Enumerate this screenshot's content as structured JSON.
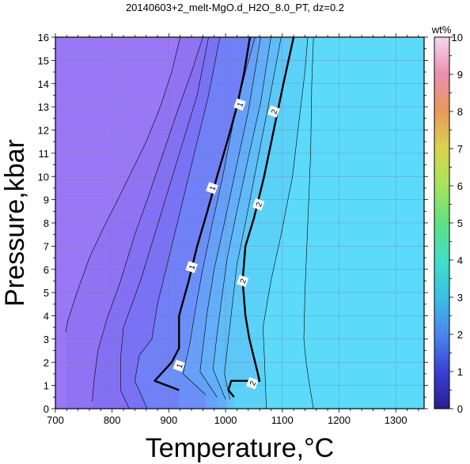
{
  "chart_data": {
    "type": "heatmap",
    "title": "20140603+2_melt-MgO.d_H2O_8.0_PT, dz=0.2",
    "xlabel": "Temperature,°C",
    "ylabel": "Pressure,kbar",
    "xlim": [
      700,
      1350
    ],
    "ylim": [
      0,
      16
    ],
    "x_ticks": [
      700,
      800,
      900,
      1000,
      1100,
      1200,
      1300
    ],
    "y_ticks": [
      0,
      1,
      2,
      3,
      4,
      5,
      6,
      7,
      8,
      9,
      10,
      11,
      12,
      13,
      14,
      15,
      16
    ],
    "grid": true,
    "colorbar": {
      "label": "wt%",
      "range": [
        0,
        10
      ],
      "ticks": [
        0,
        1,
        2,
        3,
        4,
        5,
        6,
        7,
        8,
        9,
        10
      ],
      "colors": [
        "#2a1e8c",
        "#3a40d8",
        "#4a86ee",
        "#39c0e6",
        "#3fe0c8",
        "#5fe083",
        "#a5e55b",
        "#d9d34e",
        "#e89a5a",
        "#e98fb0",
        "#f7d6ef"
      ]
    },
    "fill_bands": [
      {
        "from": 0.0,
        "to": 0.2,
        "color": "#9a78f5"
      },
      {
        "from": 0.2,
        "to": 0.4,
        "color": "#8f73f2"
      },
      {
        "from": 0.4,
        "to": 0.6,
        "color": "#8470f2"
      },
      {
        "from": 0.6,
        "to": 0.8,
        "color": "#7a72f5"
      },
      {
        "from": 0.8,
        "to": 1.0,
        "color": "#7080f6"
      },
      {
        "from": 1.0,
        "to": 1.2,
        "color": "#6a90f8"
      },
      {
        "from": 1.2,
        "to": 1.4,
        "color": "#66a0f8"
      },
      {
        "from": 1.4,
        "to": 1.6,
        "color": "#62aef8"
      },
      {
        "from": 1.6,
        "to": 1.8,
        "color": "#60bcf8"
      },
      {
        "from": 1.8,
        "to": 2.0,
        "color": "#5cc8f8"
      },
      {
        "from": 2.0,
        "to": 2.2,
        "color": "#5ad2f8"
      },
      {
        "from": 2.2,
        "to": 2.6,
        "color": "#5cdafa"
      }
    ],
    "contours": [
      {
        "level": 1,
        "major": true,
        "points": [
          [
            918,
            0.8
          ],
          [
            875,
            1.2
          ],
          [
            905,
            2.0
          ],
          [
            918,
            2.6
          ],
          [
            918,
            4.0
          ],
          [
            935,
            5.5
          ],
          [
            950,
            7.0
          ],
          [
            968,
            8.5
          ],
          [
            985,
            10.0
          ],
          [
            1003,
            11.5
          ],
          [
            1020,
            13.0
          ],
          [
            1033,
            14.5
          ],
          [
            1043,
            16.0
          ]
        ],
        "labels": [
          {
            "x": 918,
            "y": 1.85,
            "text": "1"
          },
          {
            "x": 940,
            "y": 6.1,
            "text": "1"
          },
          {
            "x": 976,
            "y": 9.5,
            "text": "1"
          },
          {
            "x": 1025,
            "y": 13.1,
            "text": "1"
          }
        ]
      },
      {
        "level": 2,
        "major": true,
        "points": [
          [
            1015,
            0.5
          ],
          [
            1005,
            0.8
          ],
          [
            1010,
            1.2
          ],
          [
            1060,
            1.2
          ],
          [
            1052,
            2.0
          ],
          [
            1042,
            3.0
          ],
          [
            1035,
            4.0
          ],
          [
            1030,
            5.5
          ],
          [
            1035,
            7.0
          ],
          [
            1050,
            8.2
          ],
          [
            1068,
            10.0
          ],
          [
            1085,
            12.0
          ],
          [
            1102,
            14.0
          ],
          [
            1120,
            16.0
          ]
        ],
        "labels": [
          {
            "x": 1047,
            "y": 1.1,
            "text": "2"
          },
          {
            "x": 1030,
            "y": 5.5,
            "text": "2"
          },
          {
            "x": 1058,
            "y": 8.8,
            "text": "2"
          },
          {
            "x": 1085,
            "y": 12.8,
            "text": "2"
          }
        ]
      },
      {
        "level": 0.2,
        "major": false,
        "points": [
          [
            718,
            3.3
          ],
          [
            722,
            3.8
          ],
          [
            738,
            5.0
          ],
          [
            760,
            6.5
          ],
          [
            785,
            7.8
          ],
          [
            810,
            9.0
          ],
          [
            830,
            10.0
          ],
          [
            860,
            11.5
          ],
          [
            885,
            13.0
          ],
          [
            905,
            14.5
          ],
          [
            920,
            16.0
          ]
        ]
      },
      {
        "level": 0.4,
        "major": false,
        "points": [
          [
            765,
            0.3
          ],
          [
            768,
            1.2
          ],
          [
            775,
            2.5
          ],
          [
            790,
            3.8
          ],
          [
            815,
            5.5
          ],
          [
            840,
            7.5
          ],
          [
            862,
            9.0
          ],
          [
            890,
            11.0
          ],
          [
            915,
            12.8
          ],
          [
            940,
            14.5
          ],
          [
            960,
            16.0
          ]
        ]
      },
      {
        "level": 0.6,
        "major": false,
        "points": [
          [
            830,
            0.0
          ],
          [
            815,
            0.8
          ],
          [
            815,
            2.2
          ],
          [
            820,
            3.5
          ],
          [
            850,
            5.5
          ],
          [
            875,
            7.5
          ],
          [
            900,
            9.5
          ],
          [
            925,
            11.5
          ],
          [
            950,
            13.5
          ],
          [
            970,
            16.0
          ]
        ]
      },
      {
        "level": 0.8,
        "major": false,
        "points": [
          [
            862,
            0.0
          ],
          [
            840,
            1.2
          ],
          [
            848,
            2.3
          ],
          [
            870,
            3.0
          ],
          [
            880,
            4.5
          ],
          [
            900,
            6.5
          ],
          [
            920,
            8.5
          ],
          [
            945,
            11.0
          ],
          [
            970,
            13.5
          ],
          [
            990,
            16.0
          ]
        ]
      },
      {
        "level": 1.2,
        "major": false,
        "points": [
          [
            965,
            0.6
          ],
          [
            925,
            1.5
          ],
          [
            937,
            2.8
          ],
          [
            945,
            4.0
          ],
          [
            958,
            5.8
          ],
          [
            975,
            7.8
          ],
          [
            995,
            10.0
          ],
          [
            1015,
            12.5
          ],
          [
            1035,
            14.5
          ],
          [
            1052,
            16.0
          ]
        ]
      },
      {
        "level": 1.4,
        "major": false,
        "points": [
          [
            985,
            0.5
          ],
          [
            955,
            1.6
          ],
          [
            962,
            3.0
          ],
          [
            968,
            4.2
          ],
          [
            980,
            6.0
          ],
          [
            998,
            8.0
          ],
          [
            1018,
            10.3
          ],
          [
            1040,
            12.8
          ],
          [
            1062,
            16.0
          ]
        ]
      },
      {
        "level": 1.6,
        "major": false,
        "points": [
          [
            1000,
            0.4
          ],
          [
            978,
            1.7
          ],
          [
            985,
            3.2
          ],
          [
            992,
            4.5
          ],
          [
            1003,
            6.5
          ],
          [
            1020,
            8.5
          ],
          [
            1040,
            10.8
          ],
          [
            1062,
            13.2
          ],
          [
            1080,
            16.0
          ]
        ]
      },
      {
        "level": 1.8,
        "major": false,
        "points": [
          [
            1008,
            0.4
          ],
          [
            998,
            1.5
          ],
          [
            1005,
            3.0
          ],
          [
            1012,
            4.5
          ],
          [
            1020,
            6.2
          ],
          [
            1035,
            8.0
          ],
          [
            1055,
            10.5
          ],
          [
            1075,
            13.0
          ],
          [
            1098,
            16.0
          ]
        ]
      },
      {
        "level": 2.2,
        "major": false,
        "points": [
          [
            1072,
            0.0
          ],
          [
            1070,
            1.2
          ],
          [
            1068,
            2.5
          ],
          [
            1066,
            3.5
          ],
          [
            1080,
            5.5
          ],
          [
            1098,
            7.5
          ],
          [
            1118,
            10.0
          ],
          [
            1130,
            12.5
          ],
          [
            1140,
            14.5
          ],
          [
            1145,
            16.0
          ]
        ]
      },
      {
        "level": 2.4,
        "major": false,
        "points": [
          [
            1155,
            0.0
          ],
          [
            1148,
            1.0
          ],
          [
            1142,
            2.0
          ],
          [
            1138,
            3.0
          ],
          [
            1140,
            5.0
          ],
          [
            1145,
            8.0
          ],
          [
            1150,
            11.0
          ],
          [
            1152,
            14.0
          ],
          [
            1155,
            16.0
          ]
        ]
      }
    ]
  }
}
